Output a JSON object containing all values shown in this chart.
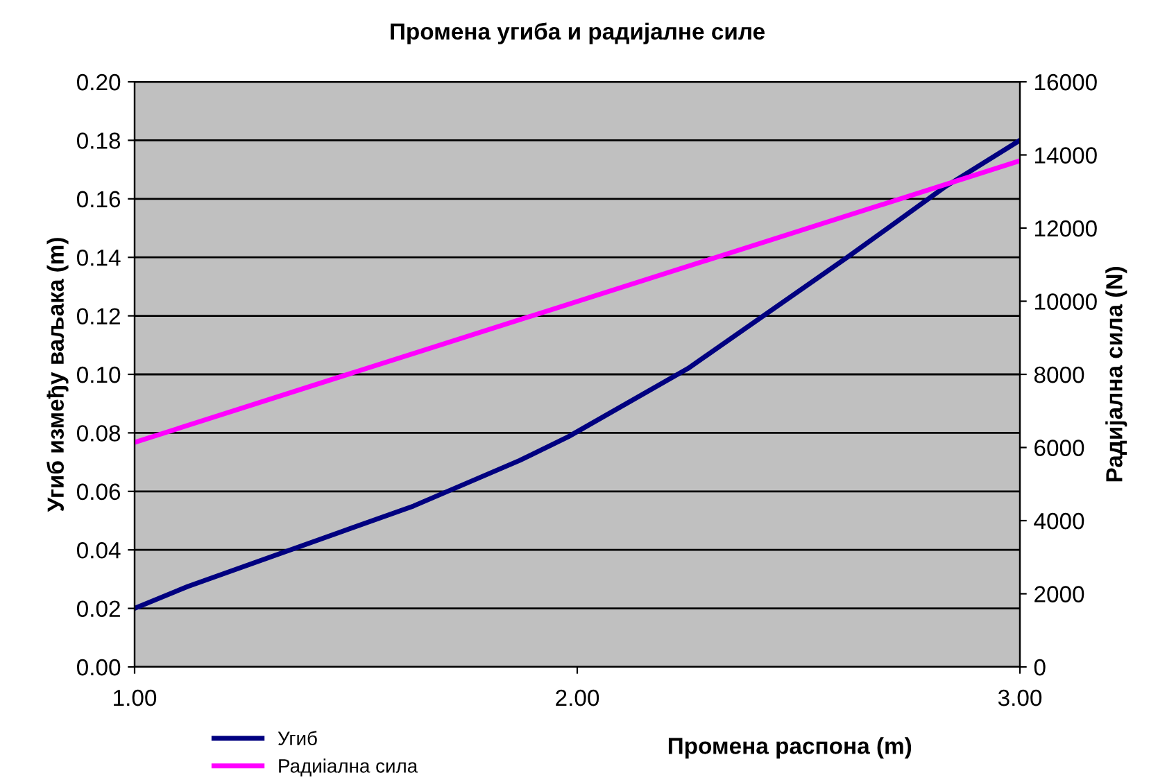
{
  "chart_data": {
    "type": "line",
    "title": "Промена угиба и радијалне силе",
    "xlabel": "Промена распона (m)",
    "ylabel": "Угиб између ваљака (m)",
    "y2label": "Радијална сила (N)",
    "xlim": [
      1.0,
      3.0
    ],
    "xticks": [
      {
        "value": 1.0,
        "label": "1.00"
      },
      {
        "value": 2.0,
        "label": "2.00"
      },
      {
        "value": 3.0,
        "label": "3.00"
      }
    ],
    "ylim": [
      0,
      0.2
    ],
    "yticks": [
      {
        "value": 0,
        "label": "0.00"
      },
      {
        "value": 0.02,
        "label": "0.02"
      },
      {
        "value": 0.04,
        "label": "0.04"
      },
      {
        "value": 0.06,
        "label": "0.06"
      },
      {
        "value": 0.08,
        "label": "0.08"
      },
      {
        "value": 0.1,
        "label": "0.10"
      },
      {
        "value": 0.12,
        "label": "0.12"
      },
      {
        "value": 0.14,
        "label": "0.14"
      },
      {
        "value": 0.16,
        "label": "0.16"
      },
      {
        "value": 0.18,
        "label": "0.18"
      },
      {
        "value": 0.2,
        "label": "0.20"
      }
    ],
    "y2lim": [
      0,
      16000
    ],
    "y2ticks": [
      0,
      2000,
      4000,
      6000,
      8000,
      10000,
      12000,
      14000,
      16000
    ],
    "grid": "y",
    "legend": "bottom left",
    "marker": "none",
    "line_style": "solid",
    "series": [
      {
        "name": "Угиб",
        "color": "#000080",
        "x": [
          1.0,
          1.12,
          1.63,
          1.87,
          1.98,
          2.25,
          2.61,
          2.83,
          3.0
        ],
        "values": [
          0.02,
          0.0275,
          0.055,
          0.0706,
          0.0787,
          0.102,
          0.14,
          0.164,
          0.18
        ]
      },
      {
        "name": "Радиіална сила",
        "color": "#ff00ff",
        "axis": "y2",
        "x": [
          1.0,
          1.5,
          3.0
        ],
        "values": [
          6140,
          8070,
          13840
        ]
      }
    ]
  }
}
